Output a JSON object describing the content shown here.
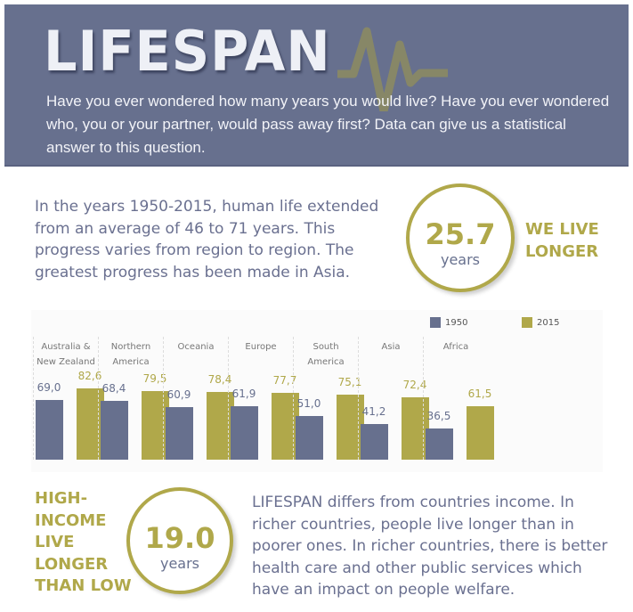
{
  "header": {
    "title": "LIFESPAN",
    "intro": "Have you ever wondered how many years you would live? Have you ever wondered who, you or your partner, would pass away first? Data can give us a statistical answer to this question."
  },
  "section1": {
    "text": "In the years 1950-2015, human life extended from an average of 46 to 71 years. This progress varies from region to region. The greatest progress has been made in Asia.",
    "stat": "25.7",
    "unit": "years",
    "badge_line1": "WE LIVE",
    "badge_line2": "LONGER"
  },
  "section2": {
    "badge_lines": [
      "HIGH-",
      "INCOME",
      "LIVE",
      "LONGER",
      "THAN LOW"
    ],
    "stat": "19.0",
    "unit": "years",
    "text": "LIFESPAN differs from countries income. In richer countries, people live longer than in poorer ones. In richer countries, there is better health care and other public services which have an impact on people welfare."
  },
  "colors": {
    "primary": "#67708e",
    "accent": "#b0a84a"
  },
  "chart_data": {
    "type": "bar",
    "categories": [
      [
        "Australia &",
        "New Zealand"
      ],
      [
        "Northern",
        "America"
      ],
      [
        "Oceania"
      ],
      [
        "Europe"
      ],
      [
        "South",
        "America"
      ],
      [
        "Asia"
      ],
      [
        "Africa"
      ]
    ],
    "series": [
      {
        "name": "1950",
        "color": "#67708e",
        "values": [
          69.0,
          68.4,
          60.9,
          61.9,
          51.0,
          41.2,
          36.5
        ],
        "labels": [
          "69,0",
          "68,4",
          "60,9",
          "61,9",
          "51,0",
          "41,2",
          "36,5"
        ]
      },
      {
        "name": "2015",
        "color": "#b0a84a",
        "values": [
          82.6,
          79.5,
          78.4,
          77.7,
          75.1,
          72.4,
          61.5
        ],
        "labels": [
          "82,6",
          "79,5",
          "78,4",
          "77,7",
          "75,1",
          "72,4",
          "61,5"
        ]
      }
    ],
    "legend": "top-right",
    "grid": false,
    "ylim": [
      0,
      90
    ]
  }
}
